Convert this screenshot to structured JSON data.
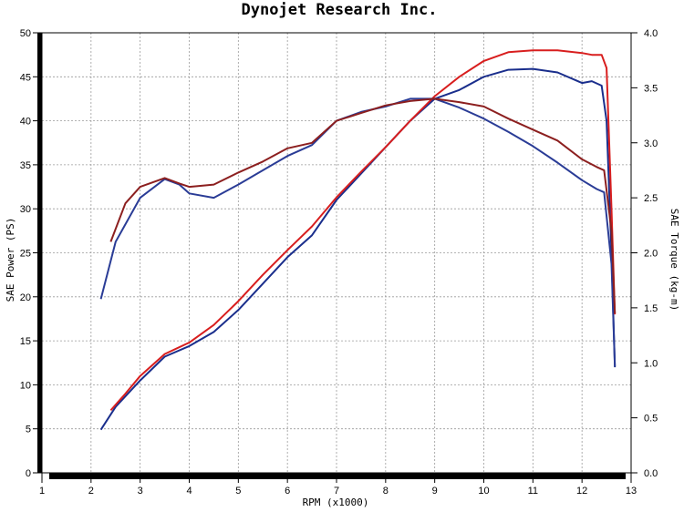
{
  "chart_data": {
    "type": "line",
    "title": "Dynojet  Research  Inc.",
    "xlabel": "RPM (x1000)",
    "ylabel": "SAE Power (PS)",
    "y2label": "SAE Torque (kg-m)",
    "xlim": [
      1,
      13
    ],
    "ylim": [
      0,
      50
    ],
    "y2lim": [
      0,
      4
    ],
    "grid": true,
    "x_ticks": [
      "1",
      "2",
      "3",
      "4",
      "5",
      "6",
      "7",
      "8",
      "9",
      "10",
      "11",
      "12",
      "13"
    ],
    "y_ticks": [
      "0",
      "5",
      "10",
      "15",
      "20",
      "25",
      "30",
      "35",
      "40",
      "45",
      "50"
    ],
    "y2_ticks": [
      "0.0",
      "0.5",
      "1.0",
      "1.5",
      "2.0",
      "2.5",
      "3.0",
      "3.5",
      "4.0"
    ],
    "series": [
      {
        "axis": "power",
        "color": "#1a2e8c",
        "points": [
          [
            2.2,
            4.9
          ],
          [
            2.5,
            7.5
          ],
          [
            3,
            10.5
          ],
          [
            3.5,
            13.2
          ],
          [
            4,
            14.4
          ],
          [
            4.5,
            16
          ],
          [
            5,
            18.5
          ],
          [
            5.5,
            21.5
          ],
          [
            6,
            24.5
          ],
          [
            6.5,
            27
          ],
          [
            7,
            31
          ],
          [
            7.5,
            34
          ],
          [
            8,
            37
          ],
          [
            8.5,
            40
          ],
          [
            9,
            42.5
          ],
          [
            9.5,
            43.5
          ],
          [
            10,
            45
          ],
          [
            10.5,
            45.8
          ],
          [
            11,
            45.9
          ],
          [
            11.5,
            45.5
          ],
          [
            12,
            44.3
          ],
          [
            12.2,
            44.5
          ],
          [
            12.4,
            44
          ],
          [
            12.5,
            40
          ],
          [
            12.6,
            25
          ],
          [
            12.67,
            12
          ]
        ]
      },
      {
        "axis": "power",
        "color": "#d81e1e",
        "points": [
          [
            2.4,
            7.1
          ],
          [
            2.7,
            9
          ],
          [
            3,
            11
          ],
          [
            3.5,
            13.5
          ],
          [
            4,
            14.8
          ],
          [
            4.5,
            16.8
          ],
          [
            5,
            19.5
          ],
          [
            5.5,
            22.5
          ],
          [
            6,
            25.3
          ],
          [
            6.5,
            28
          ],
          [
            7,
            31.3
          ],
          [
            7.5,
            34.2
          ],
          [
            8,
            37
          ],
          [
            8.5,
            40
          ],
          [
            9,
            42.8
          ],
          [
            9.5,
            45
          ],
          [
            10,
            46.8
          ],
          [
            10.5,
            47.8
          ],
          [
            11,
            48
          ],
          [
            11.5,
            48
          ],
          [
            12,
            47.7
          ],
          [
            12.2,
            47.5
          ],
          [
            12.4,
            47.5
          ],
          [
            12.5,
            46
          ],
          [
            12.6,
            30
          ],
          [
            12.67,
            18
          ]
        ]
      },
      {
        "axis": "torque",
        "color": "#2a3c96",
        "points": [
          [
            2.2,
            1.58
          ],
          [
            2.5,
            2.1
          ],
          [
            3,
            2.5
          ],
          [
            3.5,
            2.67
          ],
          [
            3.8,
            2.62
          ],
          [
            4,
            2.54
          ],
          [
            4.5,
            2.5
          ],
          [
            5,
            2.62
          ],
          [
            5.5,
            2.75
          ],
          [
            6,
            2.88
          ],
          [
            6.5,
            2.98
          ],
          [
            7,
            3.2
          ],
          [
            7.5,
            3.28
          ],
          [
            8,
            3.33
          ],
          [
            8.5,
            3.4
          ],
          [
            9,
            3.4
          ],
          [
            9.5,
            3.32
          ],
          [
            10,
            3.22
          ],
          [
            10.5,
            3.1
          ],
          [
            11,
            2.97
          ],
          [
            11.5,
            2.82
          ],
          [
            12,
            2.66
          ],
          [
            12.3,
            2.58
          ],
          [
            12.45,
            2.55
          ],
          [
            12.6,
            1.9
          ],
          [
            12.67,
            0.97
          ]
        ]
      },
      {
        "axis": "torque",
        "color": "#8c1f1f",
        "points": [
          [
            2.4,
            2.1
          ],
          [
            2.7,
            2.45
          ],
          [
            3,
            2.6
          ],
          [
            3.5,
            2.68
          ],
          [
            3.8,
            2.63
          ],
          [
            4,
            2.6
          ],
          [
            4.5,
            2.62
          ],
          [
            5,
            2.73
          ],
          [
            5.5,
            2.83
          ],
          [
            6,
            2.95
          ],
          [
            6.5,
            3.0
          ],
          [
            7,
            3.2
          ],
          [
            7.5,
            3.27
          ],
          [
            8,
            3.34
          ],
          [
            8.5,
            3.38
          ],
          [
            9,
            3.4
          ],
          [
            9.5,
            3.37
          ],
          [
            10,
            3.33
          ],
          [
            10.5,
            3.22
          ],
          [
            11,
            3.12
          ],
          [
            11.5,
            3.02
          ],
          [
            12,
            2.85
          ],
          [
            12.3,
            2.78
          ],
          [
            12.45,
            2.75
          ],
          [
            12.6,
            2.2
          ],
          [
            12.67,
            1.45
          ]
        ]
      }
    ]
  }
}
